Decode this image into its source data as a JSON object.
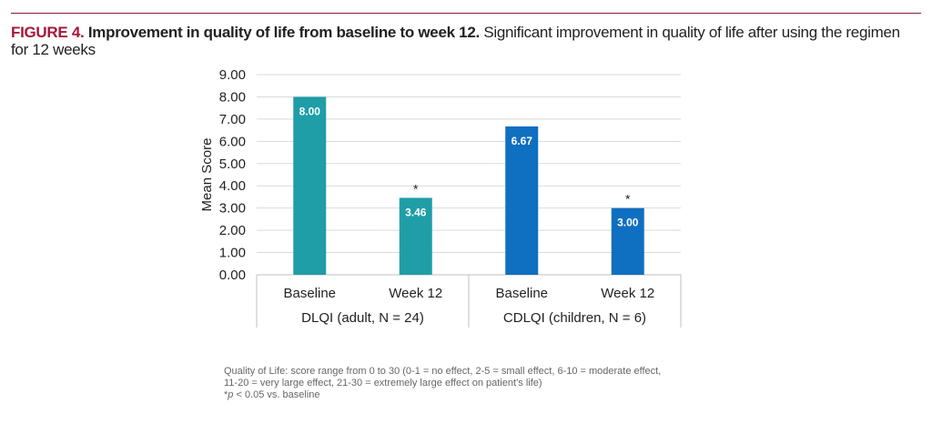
{
  "caption": {
    "label": "FIGURE 4.",
    "title": "Improvement in quality of life from baseline to week 12.",
    "text": "Significant improvement in quality of life after using the regimen for 12 weeks"
  },
  "notes": {
    "line1": "Quality of Life: score range from 0 to 30 (0-1 = no effect, 2-5 = small effect, 6-10 = moderate effect,",
    "line2": "11-20 = very large effect, 21-30 = extremely large effect on patient’s life)",
    "line3_prefix": "*",
    "line3_italic": "p",
    "line3_rest": " < 0.05 vs. baseline"
  },
  "chart_data": {
    "type": "bar",
    "ylabel": "Mean Score",
    "ylim": [
      0,
      9
    ],
    "yticks": [
      "0.00",
      "1.00",
      "2.00",
      "3.00",
      "4.00",
      "5.00",
      "6.00",
      "7.00",
      "8.00",
      "9.00"
    ],
    "grid": true,
    "groups": [
      {
        "label": "DLQI (adult, N = 24)",
        "color": "#1f9ea8",
        "bars": [
          {
            "category": "Baseline",
            "value": 8.0,
            "label": "8.00",
            "significant": false
          },
          {
            "category": "Week 12",
            "value": 3.46,
            "label": "3.46",
            "significant": true
          }
        ]
      },
      {
        "label": "CDLQI (children, N = 6)",
        "color": "#0f6fc0",
        "bars": [
          {
            "category": "Baseline",
            "value": 6.67,
            "label": "6.67",
            "significant": false
          },
          {
            "category": "Week 12",
            "value": 3.0,
            "label": "3.00",
            "significant": true
          }
        ]
      }
    ],
    "significance_marker": "*"
  }
}
